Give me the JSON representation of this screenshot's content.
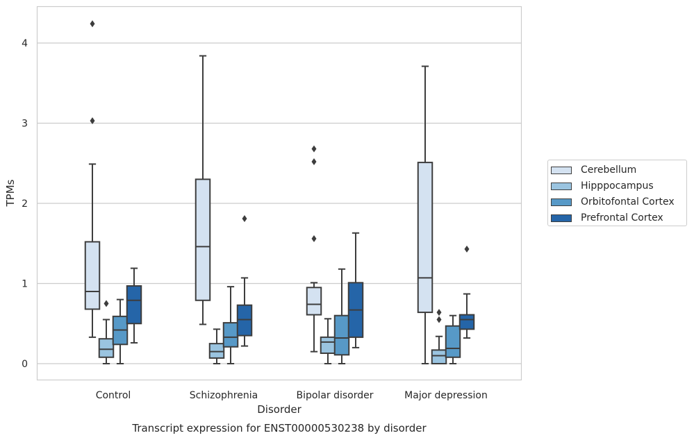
{
  "chart_data": {
    "type": "box",
    "title": "Transcript expression for ENST00000530238 by disorder",
    "xlabel": "Disorder",
    "ylabel": "TPMs",
    "ylim": [
      -0.2,
      4.47
    ],
    "yticks": [
      0,
      1,
      2,
      3,
      4
    ],
    "grid": "horizontal",
    "legend_position": "center-right",
    "categories": [
      "Control",
      "Schizophrenia",
      "Bipolar disorder",
      "Major depression"
    ],
    "series": [
      {
        "name": "Cerebellum",
        "color": "#d4e2f1",
        "boxes": [
          {
            "whisker_low": 0.33,
            "q1": 0.68,
            "median": 0.9,
            "q3": 1.52,
            "whisker_high": 2.49,
            "outliers": [
              3.03,
              4.24
            ]
          },
          {
            "whisker_low": 0.49,
            "q1": 0.79,
            "median": 1.46,
            "q3": 2.3,
            "whisker_high": 3.84,
            "outliers": []
          },
          {
            "whisker_low": 0.15,
            "q1": 0.61,
            "median": 0.74,
            "q3": 0.95,
            "whisker_high": 1.01,
            "outliers": [
              1.56,
              2.52,
              2.68
            ]
          },
          {
            "whisker_low": 0.0,
            "q1": 0.64,
            "median": 1.07,
            "q3": 2.51,
            "whisker_high": 3.71,
            "outliers": []
          }
        ]
      },
      {
        "name": "Hipppocampus",
        "color": "#9ac4e0",
        "boxes": [
          {
            "whisker_low": 0.0,
            "q1": 0.08,
            "median": 0.18,
            "q3": 0.31,
            "whisker_high": 0.55,
            "outliers": [
              0.75
            ]
          },
          {
            "whisker_low": 0.0,
            "q1": 0.07,
            "median": 0.15,
            "q3": 0.25,
            "whisker_high": 0.43,
            "outliers": []
          },
          {
            "whisker_low": 0.0,
            "q1": 0.13,
            "median": 0.27,
            "q3": 0.33,
            "whisker_high": 0.56,
            "outliers": []
          },
          {
            "whisker_low": 0.0,
            "q1": 0.0,
            "median": 0.1,
            "q3": 0.17,
            "whisker_high": 0.34,
            "outliers": [
              0.55,
              0.64
            ]
          }
        ]
      },
      {
        "name": "Orbitofontal Cortex",
        "color": "#5799c7",
        "boxes": [
          {
            "whisker_low": 0.0,
            "q1": 0.24,
            "median": 0.42,
            "q3": 0.59,
            "whisker_high": 0.8,
            "outliers": []
          },
          {
            "whisker_low": 0.0,
            "q1": 0.21,
            "median": 0.33,
            "q3": 0.51,
            "whisker_high": 0.96,
            "outliers": []
          },
          {
            "whisker_low": 0.0,
            "q1": 0.11,
            "median": 0.32,
            "q3": 0.6,
            "whisker_high": 1.18,
            "outliers": []
          },
          {
            "whisker_low": 0.0,
            "q1": 0.08,
            "median": 0.19,
            "q3": 0.47,
            "whisker_high": 0.6,
            "outliers": []
          }
        ]
      },
      {
        "name": "Prefrontal Cortex",
        "color": "#2565a8",
        "boxes": [
          {
            "whisker_low": 0.26,
            "q1": 0.5,
            "median": 0.79,
            "q3": 0.97,
            "whisker_high": 1.19,
            "outliers": []
          },
          {
            "whisker_low": 0.22,
            "q1": 0.35,
            "median": 0.55,
            "q3": 0.73,
            "whisker_high": 1.07,
            "outliers": [
              1.81
            ]
          },
          {
            "whisker_low": 0.2,
            "q1": 0.33,
            "median": 0.67,
            "q3": 1.01,
            "whisker_high": 1.63,
            "outliers": []
          },
          {
            "whisker_low": 0.32,
            "q1": 0.43,
            "median": 0.55,
            "q3": 0.61,
            "whisker_high": 0.87,
            "outliers": [
              1.43
            ]
          }
        ]
      }
    ]
  }
}
